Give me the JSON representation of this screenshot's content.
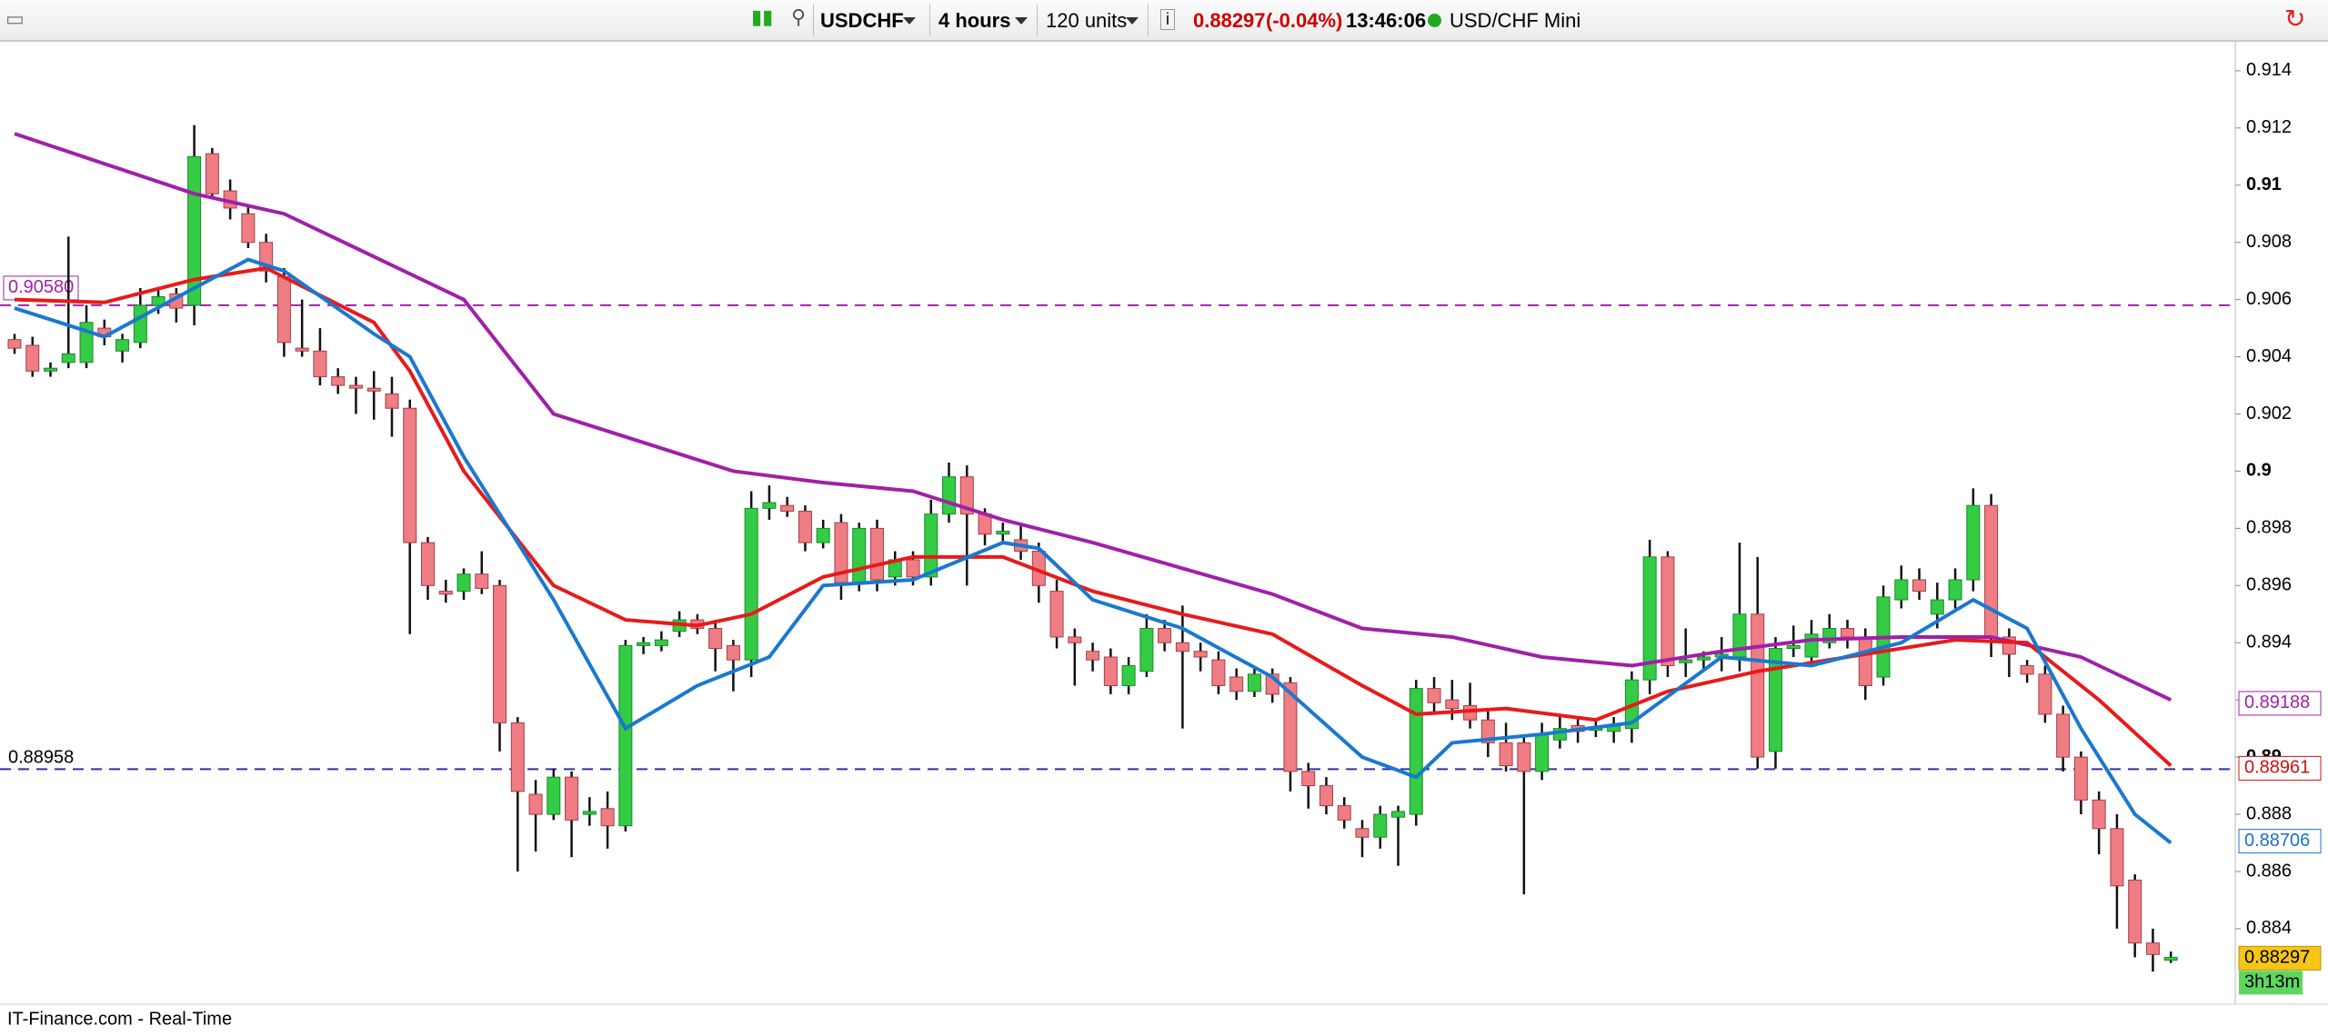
{
  "toolbar": {
    "symbol": "USDCHF",
    "period": "4 hours",
    "units": "120 units",
    "price": "0.88297",
    "change": "(-0.04%)",
    "time": "13:46:06",
    "instrument": "USD/CHF Mini"
  },
  "footer": "IT-Finance.com - Real-Time",
  "chart_data": {
    "type": "candlestick",
    "up_color": "#33cc44",
    "down_color": "#f07c84",
    "ylim": [
      0.88136,
      0.91495
    ],
    "yticks": [
      0.884,
      0.886,
      0.888,
      0.89,
      0.892,
      0.894,
      0.896,
      0.898,
      0.9,
      0.902,
      0.904,
      0.906,
      0.908,
      0.91,
      0.912,
      0.914
    ],
    "open": [
      0.9046,
      0.9044,
      0.9035,
      0.9038,
      0.9038,
      0.905,
      0.9042,
      0.9045,
      0.9058,
      0.9062,
      0.9058,
      0.9111,
      0.9098,
      0.909,
      0.908,
      0.9068,
      0.9043,
      0.9042,
      0.9033,
      0.903,
      0.9029,
      0.9027,
      0.9022,
      0.8975,
      0.8958,
      0.8958,
      0.8964,
      0.896,
      0.8912,
      0.8887,
      0.888,
      0.8893,
      0.888,
      0.8882,
      0.8876,
      0.8939,
      0.8939,
      0.8944,
      0.8948,
      0.8945,
      0.8939,
      0.8934,
      0.8987,
      0.8988,
      0.8986,
      0.8975,
      0.8982,
      0.8961,
      0.898,
      0.8963,
      0.8969,
      0.8963,
      0.8985,
      0.8998,
      0.8985,
      0.8978,
      0.8976,
      0.8972,
      0.8958,
      0.8942,
      0.8937,
      0.8935,
      0.8925,
      0.893,
      0.8945,
      0.894,
      0.8937,
      0.8934,
      0.8928,
      0.8923,
      0.8929,
      0.8926,
      0.8895,
      0.889,
      0.8883,
      0.8875,
      0.8872,
      0.8879,
      0.888,
      0.8924,
      0.892,
      0.8918,
      0.8913,
      0.8905,
      0.8905,
      0.8895,
      0.8906,
      0.8911,
      0.891,
      0.8909,
      0.891,
      0.8927,
      0.897,
      0.8933,
      0.8934,
      0.8935,
      0.8935,
      0.895,
      0.8902,
      0.8938,
      0.8935,
      0.894,
      0.8945,
      0.8942,
      0.8928,
      0.8955,
      0.8962,
      0.895,
      0.8955,
      0.8962,
      0.8988,
      0.8942,
      0.8932,
      0.8929,
      0.8915,
      0.89,
      0.8885,
      0.8875,
      0.8857,
      0.8835,
      0.8829
    ],
    "high": [
      0.9048,
      0.9047,
      0.9038,
      0.9082,
      0.9058,
      0.9053,
      0.9048,
      0.9064,
      0.9064,
      0.9064,
      0.9121,
      0.9113,
      0.9102,
      0.9093,
      0.9083,
      0.9071,
      0.906,
      0.905,
      0.9036,
      0.9033,
      0.9035,
      0.9033,
      0.9025,
      0.8977,
      0.8962,
      0.8966,
      0.8972,
      0.8962,
      0.8914,
      0.8892,
      0.8896,
      0.8895,
      0.8886,
      0.8888,
      0.8941,
      0.8942,
      0.8944,
      0.8951,
      0.895,
      0.8948,
      0.8941,
      0.8993,
      0.8995,
      0.8991,
      0.8988,
      0.8983,
      0.8985,
      0.8982,
      0.8983,
      0.8972,
      0.8972,
      0.899,
      0.9003,
      0.9002,
      0.8987,
      0.8982,
      0.8982,
      0.8975,
      0.8962,
      0.8945,
      0.894,
      0.8938,
      0.8935,
      0.895,
      0.8948,
      0.8953,
      0.894,
      0.8937,
      0.8931,
      0.8931,
      0.8931,
      0.8928,
      0.8898,
      0.8893,
      0.8886,
      0.8878,
      0.8883,
      0.8883,
      0.8927,
      0.8928,
      0.8927,
      0.8926,
      0.8916,
      0.8912,
      0.8908,
      0.8912,
      0.8914,
      0.8914,
      0.8913,
      0.8914,
      0.893,
      0.8976,
      0.8972,
      0.8945,
      0.8937,
      0.8942,
      0.8975,
      0.897,
      0.8942,
      0.8946,
      0.8948,
      0.895,
      0.8948,
      0.8945,
      0.896,
      0.8967,
      0.8966,
      0.8961,
      0.8966,
      0.8994,
      0.8992,
      0.8945,
      0.8934,
      0.8932,
      0.8918,
      0.8902,
      0.8888,
      0.888,
      0.8859,
      0.884,
      0.8832
    ],
    "low": [
      0.9041,
      0.9033,
      0.9033,
      0.9036,
      0.9036,
      0.9044,
      0.9038,
      0.9043,
      0.9055,
      0.9052,
      0.9051,
      0.9095,
      0.9088,
      0.9078,
      0.9066,
      0.904,
      0.904,
      0.903,
      0.9027,
      0.902,
      0.9018,
      0.9012,
      0.8943,
      0.8955,
      0.8954,
      0.8955,
      0.8957,
      0.8902,
      0.886,
      0.8867,
      0.8878,
      0.8865,
      0.8876,
      0.8868,
      0.8874,
      0.8936,
      0.8937,
      0.8942,
      0.8943,
      0.893,
      0.8923,
      0.8928,
      0.8983,
      0.8984,
      0.8972,
      0.8973,
      0.8955,
      0.8958,
      0.8958,
      0.896,
      0.896,
      0.896,
      0.8982,
      0.896,
      0.8974,
      0.8975,
      0.8969,
      0.8954,
      0.8938,
      0.8925,
      0.893,
      0.8922,
      0.8922,
      0.8928,
      0.8937,
      0.891,
      0.893,
      0.8922,
      0.892,
      0.8921,
      0.8919,
      0.8888,
      0.8882,
      0.888,
      0.8875,
      0.8865,
      0.8868,
      0.8862,
      0.8876,
      0.8915,
      0.8913,
      0.891,
      0.89,
      0.8895,
      0.8852,
      0.8892,
      0.8903,
      0.8905,
      0.8907,
      0.8905,
      0.8905,
      0.8922,
      0.8928,
      0.8928,
      0.893,
      0.893,
      0.893,
      0.8896,
      0.8896,
      0.8935,
      0.8932,
      0.8938,
      0.8938,
      0.892,
      0.8925,
      0.8952,
      0.8955,
      0.8945,
      0.8952,
      0.8958,
      0.8935,
      0.8928,
      0.8926,
      0.8912,
      0.8895,
      0.888,
      0.8866,
      0.884,
      0.883,
      0.8825,
      0.8828
    ],
    "close": [
      0.9043,
      0.9035,
      0.9036,
      0.9041,
      0.9052,
      0.9047,
      0.9046,
      0.9058,
      0.9061,
      0.9057,
      0.911,
      0.9097,
      0.9092,
      0.908,
      0.907,
      0.9045,
      0.9042,
      0.9033,
      0.903,
      0.9029,
      0.9028,
      0.9022,
      0.8975,
      0.896,
      0.8957,
      0.8964,
      0.8959,
      0.8912,
      0.8888,
      0.888,
      0.8893,
      0.8878,
      0.8881,
      0.8876,
      0.8939,
      0.894,
      0.8941,
      0.8948,
      0.8945,
      0.8938,
      0.8934,
      0.8987,
      0.8989,
      0.8986,
      0.8975,
      0.898,
      0.8961,
      0.898,
      0.8962,
      0.8969,
      0.8963,
      0.8985,
      0.8998,
      0.8985,
      0.8978,
      0.8979,
      0.8972,
      0.896,
      0.8942,
      0.894,
      0.8934,
      0.8925,
      0.8932,
      0.8945,
      0.894,
      0.8937,
      0.8935,
      0.8925,
      0.8923,
      0.8929,
      0.8922,
      0.8895,
      0.889,
      0.8883,
      0.8878,
      0.8872,
      0.888,
      0.8881,
      0.8924,
      0.8919,
      0.8917,
      0.8913,
      0.8905,
      0.8897,
      0.8895,
      0.8908,
      0.891,
      0.8909,
      0.891,
      0.8911,
      0.8927,
      0.897,
      0.8932,
      0.8934,
      0.8935,
      0.8936,
      0.895,
      0.89,
      0.8938,
      0.8939,
      0.8943,
      0.8945,
      0.8942,
      0.8925,
      0.8956,
      0.8962,
      0.8958,
      0.8955,
      0.8962,
      0.8988,
      0.8942,
      0.8936,
      0.8929,
      0.8915,
      0.89,
      0.8885,
      0.8875,
      0.8855,
      0.8835,
      0.8831,
      0.883
    ],
    "series": [
      {
        "color": "#a020a8",
        "x": [
          0,
          10,
          15,
          20,
          25,
          30,
          34,
          40,
          45,
          50,
          55,
          60,
          65,
          70,
          75,
          80,
          85,
          90,
          95,
          100,
          105,
          110,
          115,
          120
        ],
        "values": [
          0.9118,
          0.9097,
          0.909,
          0.9075,
          0.906,
          0.902,
          0.9012,
          0.9,
          0.8996,
          0.8993,
          0.8983,
          0.8975,
          0.8966,
          0.8957,
          0.8945,
          0.8942,
          0.8935,
          0.8932,
          0.8937,
          0.8941,
          0.8942,
          0.8942,
          0.8935,
          0.892
        ]
      },
      {
        "color": "#e81a1a",
        "x": [
          0,
          5,
          10,
          14,
          20,
          22,
          25,
          30,
          34,
          38,
          41,
          45,
          50,
          55,
          60,
          65,
          70,
          75,
          78,
          83,
          88,
          92,
          97,
          102,
          108,
          112,
          116,
          120
        ],
        "values": [
          0.906,
          0.9059,
          0.9067,
          0.9071,
          0.9052,
          0.9035,
          0.9,
          0.896,
          0.8948,
          0.8946,
          0.895,
          0.8963,
          0.897,
          0.897,
          0.8958,
          0.895,
          0.8943,
          0.8925,
          0.8915,
          0.8917,
          0.8913,
          0.8923,
          0.893,
          0.8935,
          0.8941,
          0.894,
          0.892,
          0.8897
        ]
      },
      {
        "color": "#1a78d0",
        "x": [
          0,
          5,
          10,
          13,
          15,
          20,
          22,
          25,
          30,
          34,
          38,
          42,
          45,
          50,
          55,
          57,
          60,
          65,
          70,
          75,
          78,
          80,
          85,
          90,
          95,
          100,
          105,
          109,
          112,
          115,
          118,
          120
        ],
        "values": [
          0.9057,
          0.9047,
          0.9064,
          0.9074,
          0.907,
          0.9048,
          0.904,
          0.9005,
          0.8955,
          0.891,
          0.8925,
          0.8935,
          0.896,
          0.8962,
          0.8975,
          0.8973,
          0.8955,
          0.8945,
          0.8928,
          0.89,
          0.8893,
          0.8905,
          0.8908,
          0.8912,
          0.8935,
          0.8932,
          0.894,
          0.8955,
          0.8945,
          0.891,
          0.888,
          0.887
        ]
      }
    ],
    "levels": [
      {
        "value": 0.9058,
        "label": "0.90580",
        "color": "#a020a8"
      },
      {
        "value": 0.88958,
        "label": "0.88958",
        "color": "#3030a0"
      }
    ],
    "price_tags": [
      {
        "value": 0.89188,
        "color": "#a020a8",
        "background": "#ffffff"
      },
      {
        "value": 0.88961,
        "color": "#d01010",
        "background": "#ffffff"
      },
      {
        "value": 0.88706,
        "color": "#1a70c8",
        "background": "#ffffff"
      },
      {
        "value": 0.88297,
        "color": "#000000",
        "background": "#f5c518"
      }
    ],
    "countdown": "3h13m"
  }
}
